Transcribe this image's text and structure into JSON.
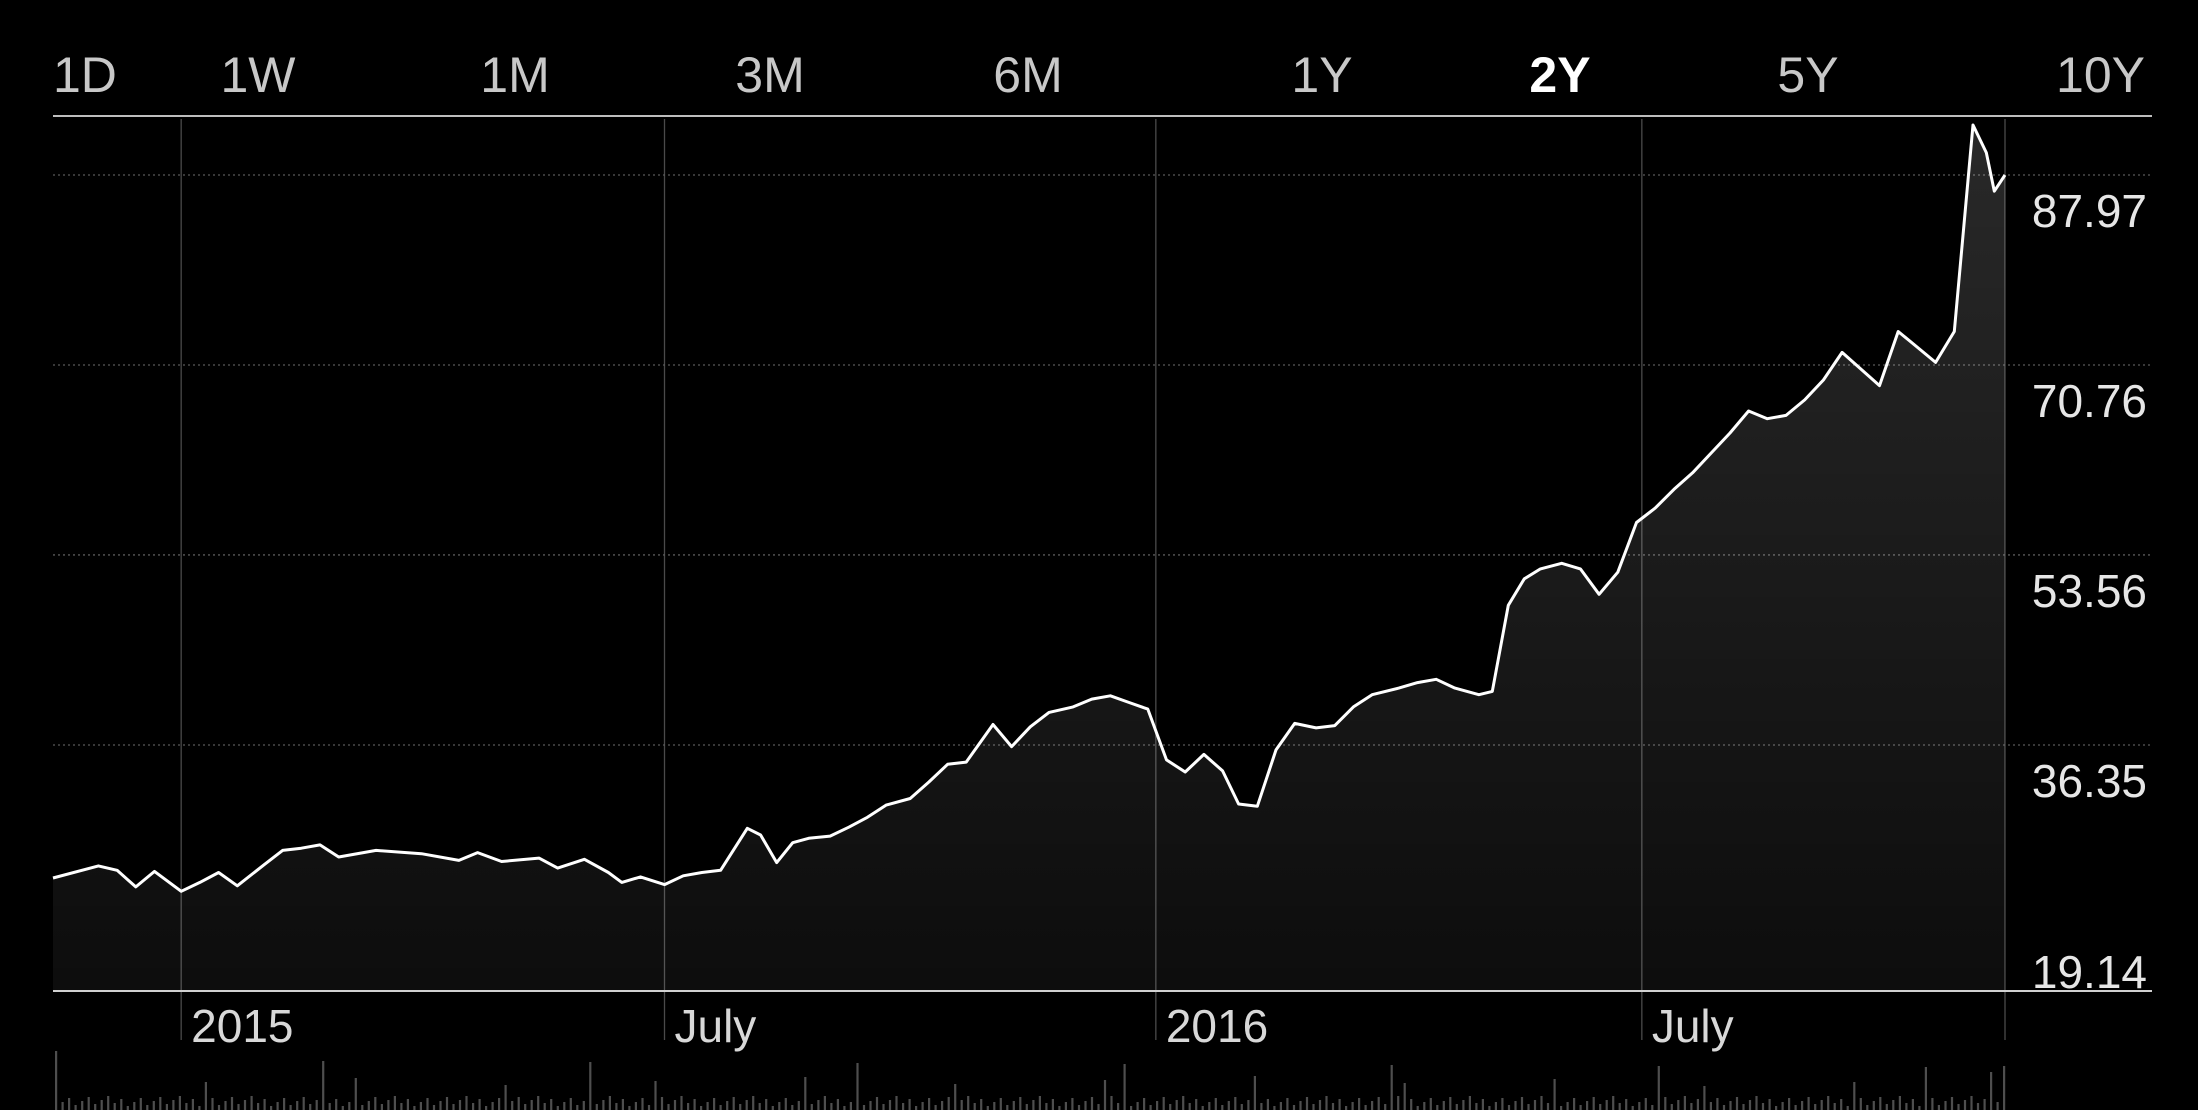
{
  "range_tabs": [
    {
      "label": "1D",
      "selected": false
    },
    {
      "label": "1W",
      "selected": false
    },
    {
      "label": "1M",
      "selected": false
    },
    {
      "label": "3M",
      "selected": false
    },
    {
      "label": "6M",
      "selected": false
    },
    {
      "label": "1Y",
      "selected": false
    },
    {
      "label": "2Y",
      "selected": true
    },
    {
      "label": "5Y",
      "selected": false
    },
    {
      "label": "10Y",
      "selected": false
    }
  ],
  "colors": {
    "background": "#000000",
    "line": "#ffffff",
    "grid": "#5a5a5a",
    "text": "#e6e6e6"
  },
  "chart_data": {
    "type": "area",
    "title": "",
    "xlabel": "",
    "ylabel": "",
    "x_range": [
      "2014-11-14",
      "2016-11-14"
    ],
    "ylim": [
      19.14,
      87.97
    ],
    "y_ticks": [
      "19.14",
      "36.35",
      "53.56",
      "70.76",
      "87.97"
    ],
    "x_ticks": [
      {
        "label": "2015",
        "date": "2015-01-01"
      },
      {
        "label": "July",
        "date": "2015-07-01"
      },
      {
        "label": "2016",
        "date": "2016-01-01"
      },
      {
        "label": "July",
        "date": "2016-07-01"
      }
    ],
    "grid": true,
    "series": [
      {
        "x": [
          "2014-11-14",
          "2014-12-01",
          "2014-12-08",
          "2014-12-15",
          "2014-12-22",
          "2015-01-01",
          "2015-01-08",
          "2015-01-15",
          "2015-01-22",
          "2015-02-01",
          "2015-02-08",
          "2015-02-15",
          "2015-02-22",
          "2015-03-01",
          "2015-03-15",
          "2015-04-01",
          "2015-04-15",
          "2015-04-22",
          "2015-05-01",
          "2015-05-15",
          "2015-05-22",
          "2015-06-01",
          "2015-06-10",
          "2015-06-15",
          "2015-06-22",
          "2015-07-01",
          "2015-07-08",
          "2015-07-15",
          "2015-07-22",
          "2015-08-01",
          "2015-08-06",
          "2015-08-12",
          "2015-08-18",
          "2015-08-24",
          "2015-09-01",
          "2015-09-08",
          "2015-09-15",
          "2015-09-22",
          "2015-10-01",
          "2015-10-08",
          "2015-10-15",
          "2015-10-22",
          "2015-11-01",
          "2015-11-08",
          "2015-11-15",
          "2015-11-22",
          "2015-12-01",
          "2015-12-08",
          "2015-12-15",
          "2015-12-22",
          "2015-12-29",
          "2016-01-05",
          "2016-01-12",
          "2016-01-19",
          "2016-01-26",
          "2016-02-01",
          "2016-02-08",
          "2016-02-15",
          "2016-02-22",
          "2016-03-01",
          "2016-03-08",
          "2016-03-15",
          "2016-03-22",
          "2016-04-01",
          "2016-04-08",
          "2016-04-15",
          "2016-04-22",
          "2016-05-01",
          "2016-05-06",
          "2016-05-12",
          "2016-05-18",
          "2016-05-24",
          "2016-06-01",
          "2016-06-08",
          "2016-06-15",
          "2016-06-22",
          "2016-06-29",
          "2016-07-06",
          "2016-07-13",
          "2016-07-20",
          "2016-07-27",
          "2016-08-03",
          "2016-08-10",
          "2016-08-17",
          "2016-08-24",
          "2016-08-31",
          "2016-09-07",
          "2016-09-14",
          "2016-09-21",
          "2016-09-28",
          "2016-10-05",
          "2016-10-12",
          "2016-10-19",
          "2016-10-26",
          "2016-11-02",
          "2016-11-07",
          "2016-11-10",
          "2016-11-14"
        ],
        "values": [
          24.3,
          25.4,
          25.0,
          23.5,
          24.9,
          23.1,
          23.9,
          24.8,
          23.6,
          25.5,
          26.8,
          27.0,
          27.3,
          26.2,
          26.8,
          26.5,
          25.9,
          26.6,
          25.8,
          26.1,
          25.2,
          26.0,
          24.8,
          23.9,
          24.4,
          23.7,
          24.5,
          24.8,
          25.0,
          28.8,
          28.2,
          25.7,
          27.5,
          27.9,
          28.1,
          28.9,
          29.8,
          30.9,
          31.5,
          33.0,
          34.6,
          34.8,
          38.2,
          36.2,
          38.0,
          39.3,
          39.8,
          40.5,
          40.8,
          40.2,
          39.6,
          35.0,
          33.9,
          35.5,
          34.0,
          31.0,
          30.8,
          35.9,
          38.3,
          37.9,
          38.1,
          39.8,
          40.9,
          41.5,
          42.0,
          42.3,
          41.5,
          40.9,
          41.2,
          49.0,
          51.4,
          52.3,
          52.8,
          52.3,
          50.0,
          52.0,
          56.5,
          57.8,
          59.5,
          61.0,
          62.8,
          64.6,
          66.6,
          65.9,
          66.2,
          67.6,
          69.4,
          71.9,
          70.4,
          68.9,
          73.8,
          72.4,
          71.0,
          73.8,
          92.5,
          90.0,
          86.5,
          87.97
        ]
      }
    ]
  }
}
